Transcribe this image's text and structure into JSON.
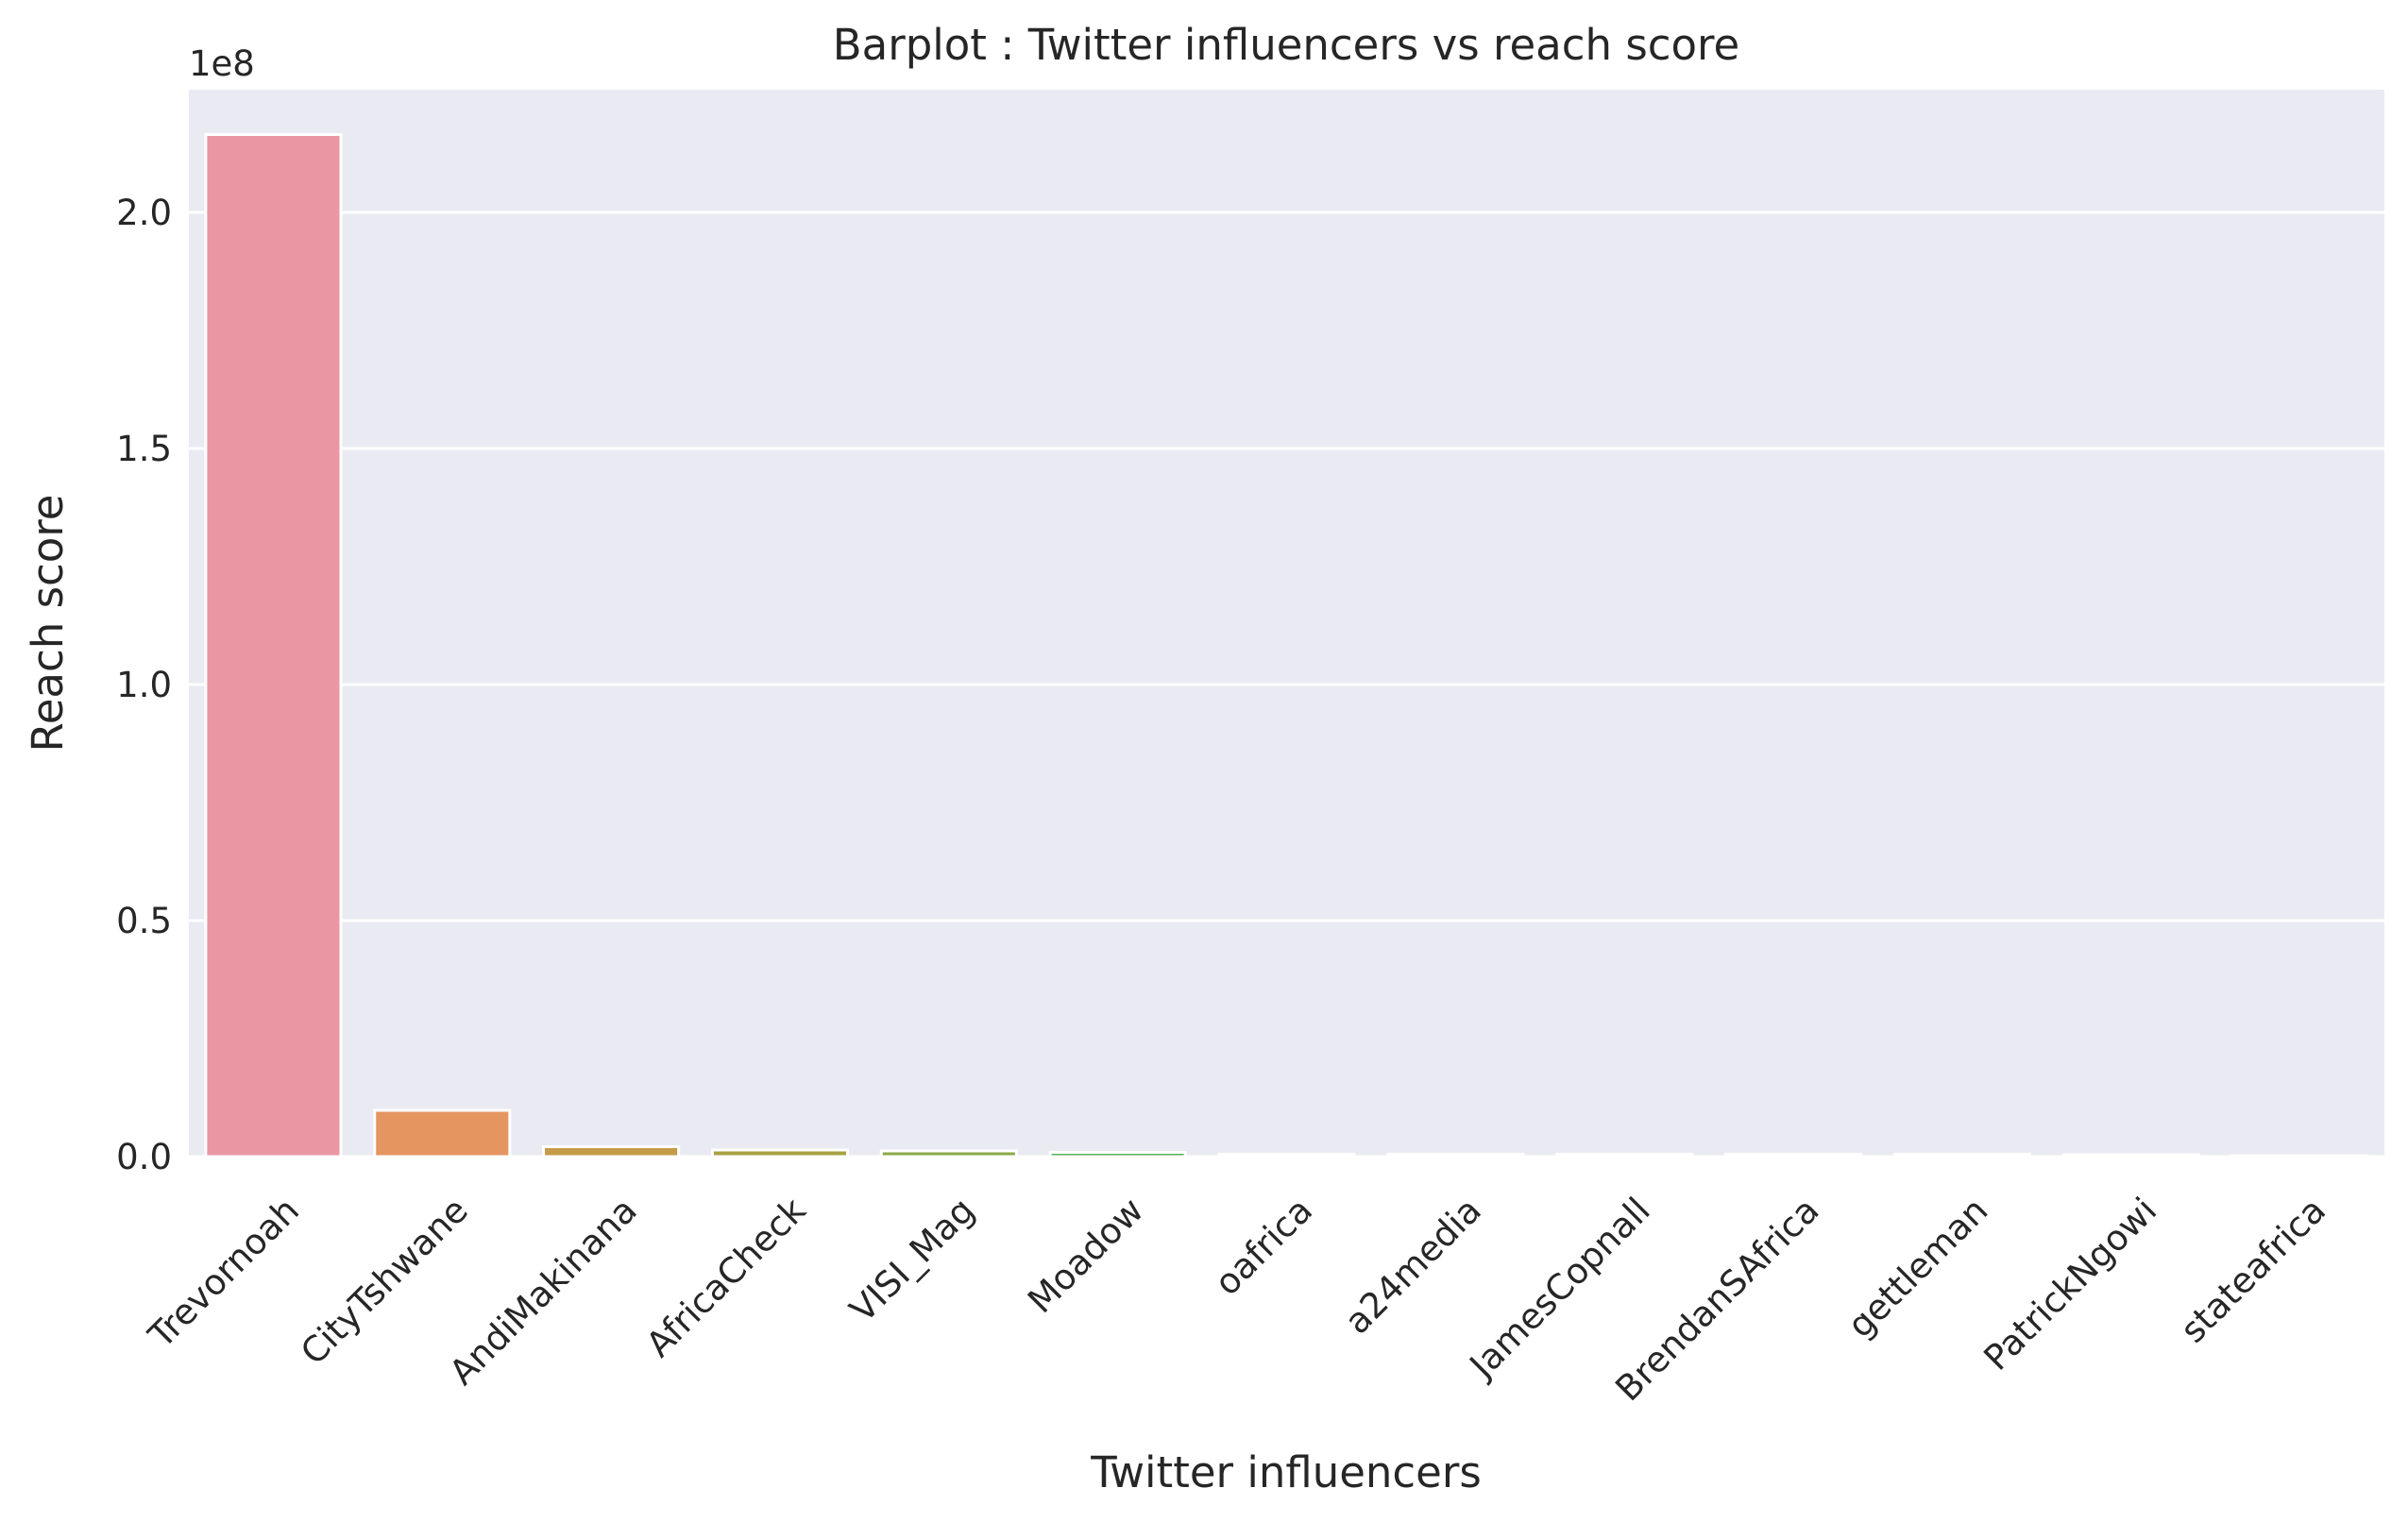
{
  "chart_data": {
    "type": "bar",
    "title": "Barplot : Twitter influencers vs reach score",
    "xlabel": "Twitter influencers",
    "ylabel": "Reach score",
    "y_offset_label": "1e8",
    "y_scale_multiplier": 100000000,
    "ylim": [
      0,
      2.26
    ],
    "y_ticks": [
      0.0,
      0.5,
      1.0,
      1.5,
      2.0
    ],
    "y_tick_labels": [
      "0.0",
      "0.5",
      "1.0",
      "1.5",
      "2.0"
    ],
    "grid": true,
    "legend": "none",
    "categories": [
      "Trevornoah",
      "CityTshwane",
      "AndiMakinana",
      "AfricaCheck",
      "VISI_Mag",
      "Moadow",
      "oafrica",
      "a24media",
      "JamesCopnall",
      "BrendanSAfrica",
      "gettleman",
      "PatrickNgowi",
      "stateafrica"
    ],
    "values": [
      2.165,
      0.098,
      0.021,
      0.014,
      0.012,
      0.009,
      0.005,
      0.005,
      0.005,
      0.005,
      0.005,
      0.004,
      0.002
    ],
    "colors": [
      "#ea96a3",
      "#e59560",
      "#c49b47",
      "#a8a244",
      "#89aa48",
      "#58b15a",
      "#52ae8a",
      "#55ac9f",
      "#57aab2",
      "#5aa8c8",
      "#7ea3e0",
      "#b69be8",
      "#e38ed6"
    ],
    "background_color": "#eaeaf2",
    "grid_color": "#ffffff"
  }
}
